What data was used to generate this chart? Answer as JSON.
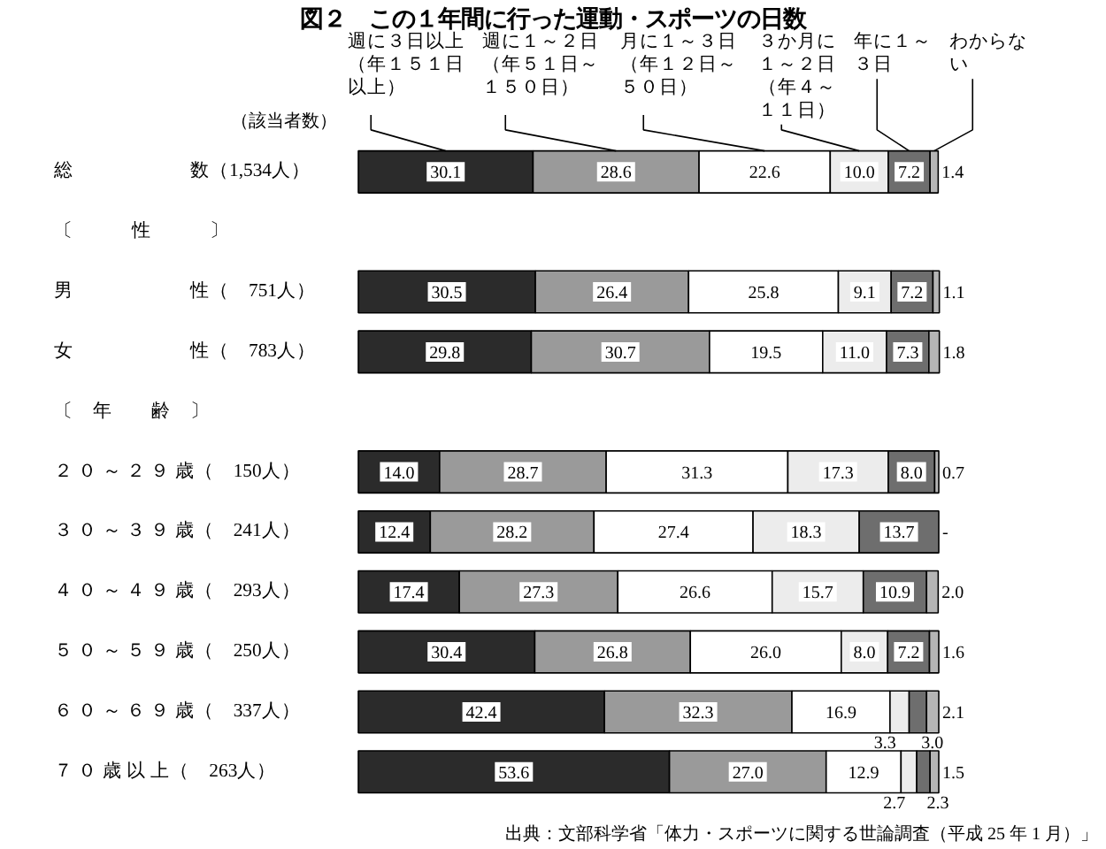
{
  "chart_data": {
    "type": "bar",
    "orientation": "horizontal",
    "stacked": true,
    "title": "図２　この１年間に行った運動・スポーツの日数",
    "categories": [
      "総　　　　　　数（1,534人）",
      "〔　　　性　　　〕",
      "男　　　　　　性（　751人）",
      "女　　　　　　性（　783人）",
      "〔　年　　齢　〕",
      "２ ０ ～ ２ ９ 歳（　150人）",
      "３ ０ ～ ３ ９ 歳（　241人）",
      "４ ０ ～ ４ ９ 歳（　293人）",
      "５ ０ ～ ５ ９ 歳（　250人）",
      "６ ０ ～ ６ ９ 歳（　337人）",
      "７ ０ 歳 以 上（　263人）"
    ],
    "series": [
      {
        "name": "週に３日以上（年１５１日以上）",
        "color": "#2b2b2b",
        "values": [
          30.1,
          null,
          30.5,
          29.8,
          null,
          14.0,
          12.4,
          17.4,
          30.4,
          42.4,
          53.6
        ],
        "value_labels": [
          "30.1",
          null,
          "30.5",
          "29.8",
          null,
          "14.0",
          "12.4",
          "17.4",
          "30.4",
          "42.4",
          "53.6"
        ]
      },
      {
        "name": "週に１～２日（年５１日～１５０日）",
        "color": "#9a9a9a",
        "values": [
          28.6,
          null,
          26.4,
          30.7,
          null,
          28.7,
          28.2,
          27.3,
          26.8,
          32.3,
          27.0
        ],
        "value_labels": [
          "28.6",
          null,
          "26.4",
          "30.7",
          null,
          "28.7",
          "28.2",
          "27.3",
          "26.8",
          "32.3",
          "27.0"
        ]
      },
      {
        "name": "月に１～３日（年１２日～５０日）",
        "color": "#ffffff",
        "values": [
          22.6,
          null,
          25.8,
          19.5,
          null,
          31.3,
          27.4,
          26.6,
          26.0,
          16.9,
          12.9
        ],
        "value_labels": [
          "22.6",
          null,
          "25.8",
          "19.5",
          null,
          "31.3",
          "27.4",
          "26.6",
          "26.0",
          "16.9",
          "12.9"
        ]
      },
      {
        "name": "３か月に１～２日（年４～１１日）",
        "color": "#ececec",
        "values": [
          10.0,
          null,
          9.1,
          11.0,
          null,
          17.3,
          18.3,
          15.7,
          8.0,
          3.3,
          2.7
        ],
        "value_labels": [
          "10.0",
          null,
          "9.1",
          "11.0",
          null,
          "17.3",
          "18.3",
          "15.7",
          "8.0",
          "3.3",
          "2.7"
        ]
      },
      {
        "name": "年に１～３日",
        "color": "#6e6e6e",
        "values": [
          7.2,
          null,
          7.2,
          7.3,
          null,
          8.0,
          13.7,
          10.9,
          7.2,
          3.0,
          2.3
        ],
        "value_labels": [
          "7.2",
          null,
          "7.2",
          "7.3",
          null,
          "8.0",
          "13.7",
          "10.9",
          "7.2",
          "3.0",
          "2.3"
        ]
      },
      {
        "name": "わからない",
        "color": "#b5b5b5",
        "values": [
          1.4,
          null,
          1.1,
          1.8,
          null,
          0.7,
          null,
          2.0,
          1.6,
          2.1,
          1.5
        ],
        "value_labels": [
          "1.4",
          null,
          "1.1",
          "1.8",
          null,
          "0.7",
          "-",
          "2.0",
          "1.6",
          "2.1",
          "1.5"
        ]
      }
    ],
    "annotations": [
      "（該当者数）",
      "出典：文部科学省「体力・スポーツに関する世論調査（平成 25 年 1 月）」"
    ]
  }
}
